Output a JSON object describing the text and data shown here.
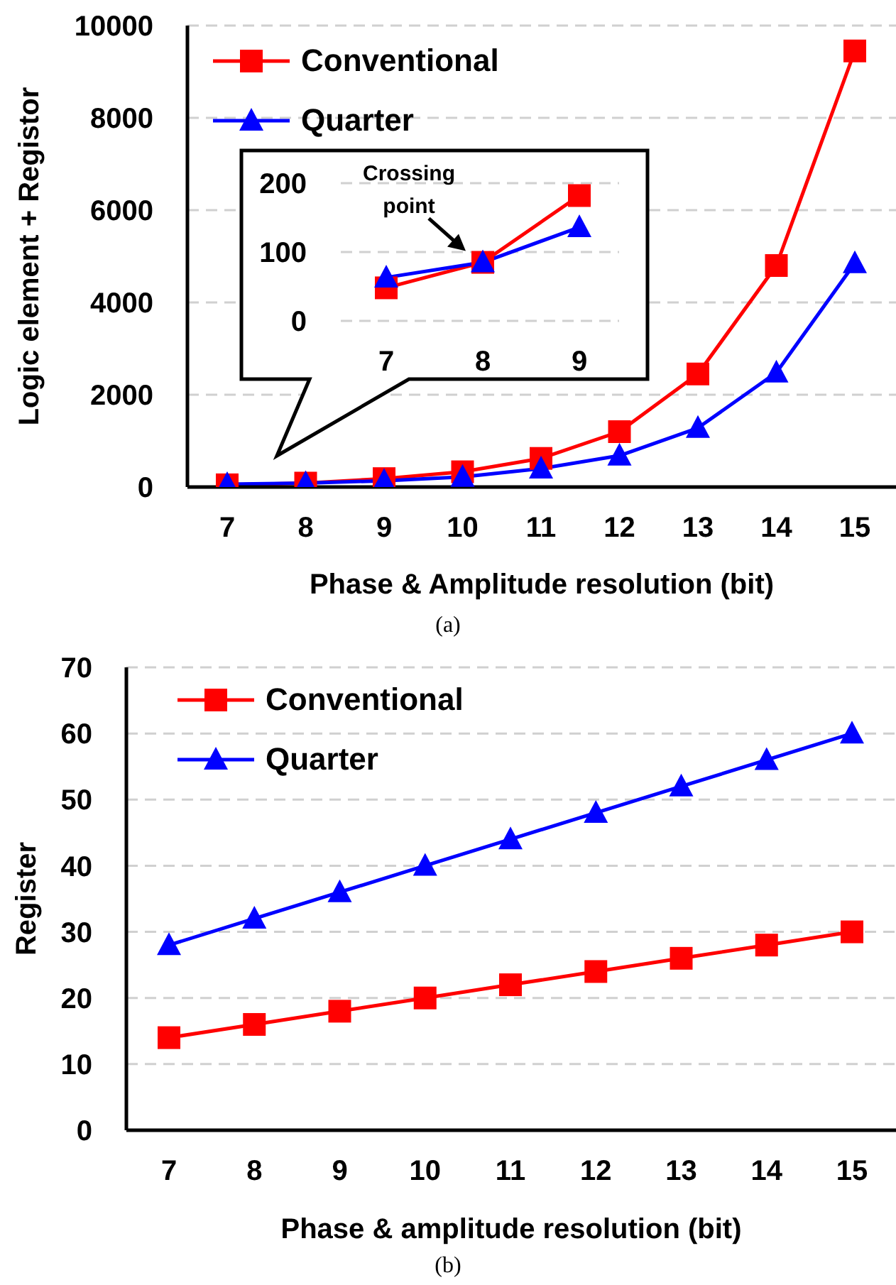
{
  "chart_data": [
    {
      "type": "line",
      "categories": [
        "7",
        "8",
        "9",
        "10",
        "11",
        "12",
        "13",
        "14",
        "15"
      ],
      "xlabel": "Phase & Amplitude resolution (bit)",
      "ylabel": "Logic element + Registor",
      "ylim": [
        0,
        10000
      ],
      "yticks": [
        0,
        2000,
        4000,
        6000,
        8000,
        10000
      ],
      "grid": "y",
      "legend": "top left",
      "line_style": "solid",
      "annotations": [
        "(a)"
      ],
      "series": [
        {
          "name": "Conventional",
          "color": "#ff0000",
          "marker": "square",
          "values": [
            48,
            85,
            182,
            330,
            620,
            1200,
            2450,
            4800,
            9450
          ]
        },
        {
          "name": "Quarter",
          "color": "#0000ff",
          "marker": "triangle",
          "values": [
            63,
            85,
            136,
            220,
            400,
            680,
            1280,
            2480,
            4850
          ]
        }
      ]
    },
    {
      "type": "line",
      "categories": [
        "7",
        "8",
        "9"
      ],
      "ylim": [
        0,
        200
      ],
      "yticks": [
        0,
        100,
        200
      ],
      "grid": "y",
      "line_style": "solid",
      "annotations": [
        {
          "text": "Crossing point",
          "x": "8",
          "y": 85
        }
      ],
      "series": [
        {
          "color": "#ff0000",
          "marker": "square",
          "values": [
            48,
            85,
            182
          ]
        },
        {
          "color": "#0000ff",
          "marker": "triangle",
          "values": [
            63,
            85,
            136
          ]
        }
      ]
    },
    {
      "type": "line",
      "categories": [
        "7",
        "8",
        "9",
        "10",
        "11",
        "12",
        "13",
        "14",
        "15"
      ],
      "xlabel": "Phase & amplitude resolution (bit)",
      "ylabel": "Register",
      "ylim": [
        0,
        70
      ],
      "yticks": [
        0,
        10,
        20,
        30,
        40,
        50,
        60,
        70
      ],
      "grid": "y",
      "legend": "top left",
      "line_style": "solid",
      "annotations": [
        "(b)"
      ],
      "series": [
        {
          "name": "Conventional",
          "color": "#ff0000",
          "marker": "square",
          "values": [
            14,
            16,
            18,
            20,
            22,
            24,
            26,
            28,
            30
          ]
        },
        {
          "name": "Quarter",
          "color": "#0000ff",
          "marker": "triangle",
          "values": [
            28,
            32,
            36,
            40,
            44,
            48,
            52,
            56,
            60
          ]
        }
      ]
    }
  ]
}
